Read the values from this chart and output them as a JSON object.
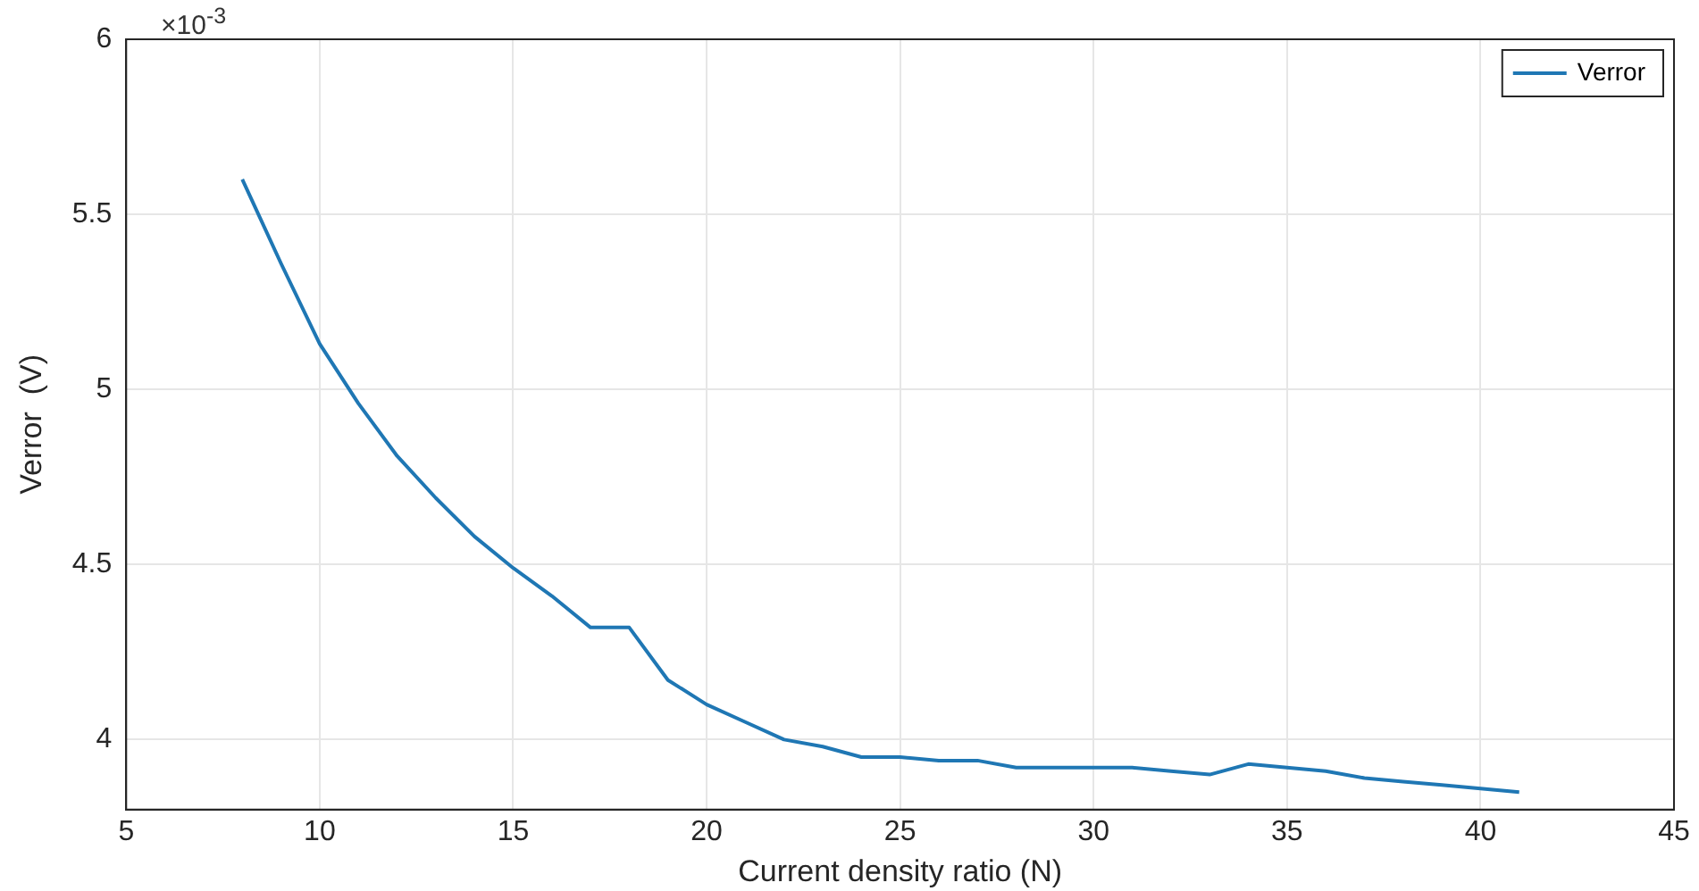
{
  "chart_data": {
    "type": "line",
    "xlabel": "Current density ratio (N)",
    "ylabel": "Verror  (V)",
    "annotations": [
      "×10$^{-3}$"
    ],
    "x": [
      8,
      9,
      10,
      11,
      12,
      13,
      14,
      15,
      16,
      17,
      18,
      19,
      20,
      21,
      22,
      23,
      24,
      25,
      26,
      27,
      28,
      29,
      30,
      31,
      32,
      33,
      34,
      35,
      36,
      37,
      38,
      39,
      40,
      41
    ],
    "series": [
      {
        "name": "Verror",
        "color": "#1f77b4",
        "values": [
          5.6,
          5.36,
          5.13,
          4.96,
          4.81,
          4.69,
          4.58,
          4.49,
          4.41,
          4.32,
          4.32,
          4.17,
          4.1,
          4.05,
          4.0,
          3.98,
          3.95,
          3.95,
          3.94,
          3.94,
          3.92,
          3.92,
          3.92,
          3.92,
          3.91,
          3.9,
          3.93,
          3.92,
          3.91,
          3.89,
          3.88,
          3.87,
          3.86,
          3.85
        ]
      }
    ],
    "xlim": [
      5,
      45
    ],
    "xticks": [
      5,
      10,
      15,
      20,
      25,
      30,
      35,
      40,
      45
    ],
    "ylim": [
      3.8,
      6
    ],
    "yticks": [
      4,
      4.5,
      5,
      5.5,
      6
    ],
    "grid": true,
    "legend": "top right",
    "marker": "none",
    "line_style": "solid"
  }
}
